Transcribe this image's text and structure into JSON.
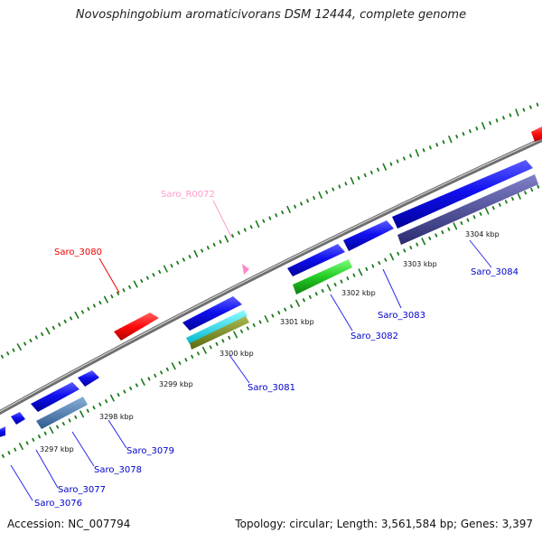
{
  "title": "Novosphingobium aromaticivorans DSM 12444, complete genome",
  "footer": {
    "accession": "Accession: NC_007794",
    "summary": "Topology: circular; Length: 3,561,584 bp; Genes: 3,397"
  },
  "colors": {
    "backbone": "#8c8c8c",
    "tick": "#1a7a1a",
    "cds": "#0000ee",
    "rrna": "#ff1010",
    "ncrna": "#ff88cc",
    "gene_label": "#0000cc",
    "label_line": "#2a2aee"
  },
  "scale_labels": [
    "3297 kbp",
    "3298 kbp",
    "3299 kbp",
    "3300 kbp",
    "3301 kbp",
    "3302 kbp",
    "3303 kbp",
    "3304 kbp"
  ],
  "genes": [
    {
      "label": "Saro_3076",
      "color": "#0000cc"
    },
    {
      "label": "Saro_3077",
      "color": "#0000cc"
    },
    {
      "label": "Saro_3078",
      "color": "#0000cc"
    },
    {
      "label": "Saro_3079",
      "color": "#0000cc"
    },
    {
      "label": "Saro_3080",
      "color": "#ee0000"
    },
    {
      "label": "Saro_R0072",
      "color": "#ff99cc"
    },
    {
      "label": "Saro_3081",
      "color": "#0000cc"
    },
    {
      "label": "Saro_3082",
      "color": "#0000cc"
    },
    {
      "label": "Saro_3083",
      "color": "#0000cc"
    },
    {
      "label": "Saro_3084",
      "color": "#0000cc"
    }
  ]
}
